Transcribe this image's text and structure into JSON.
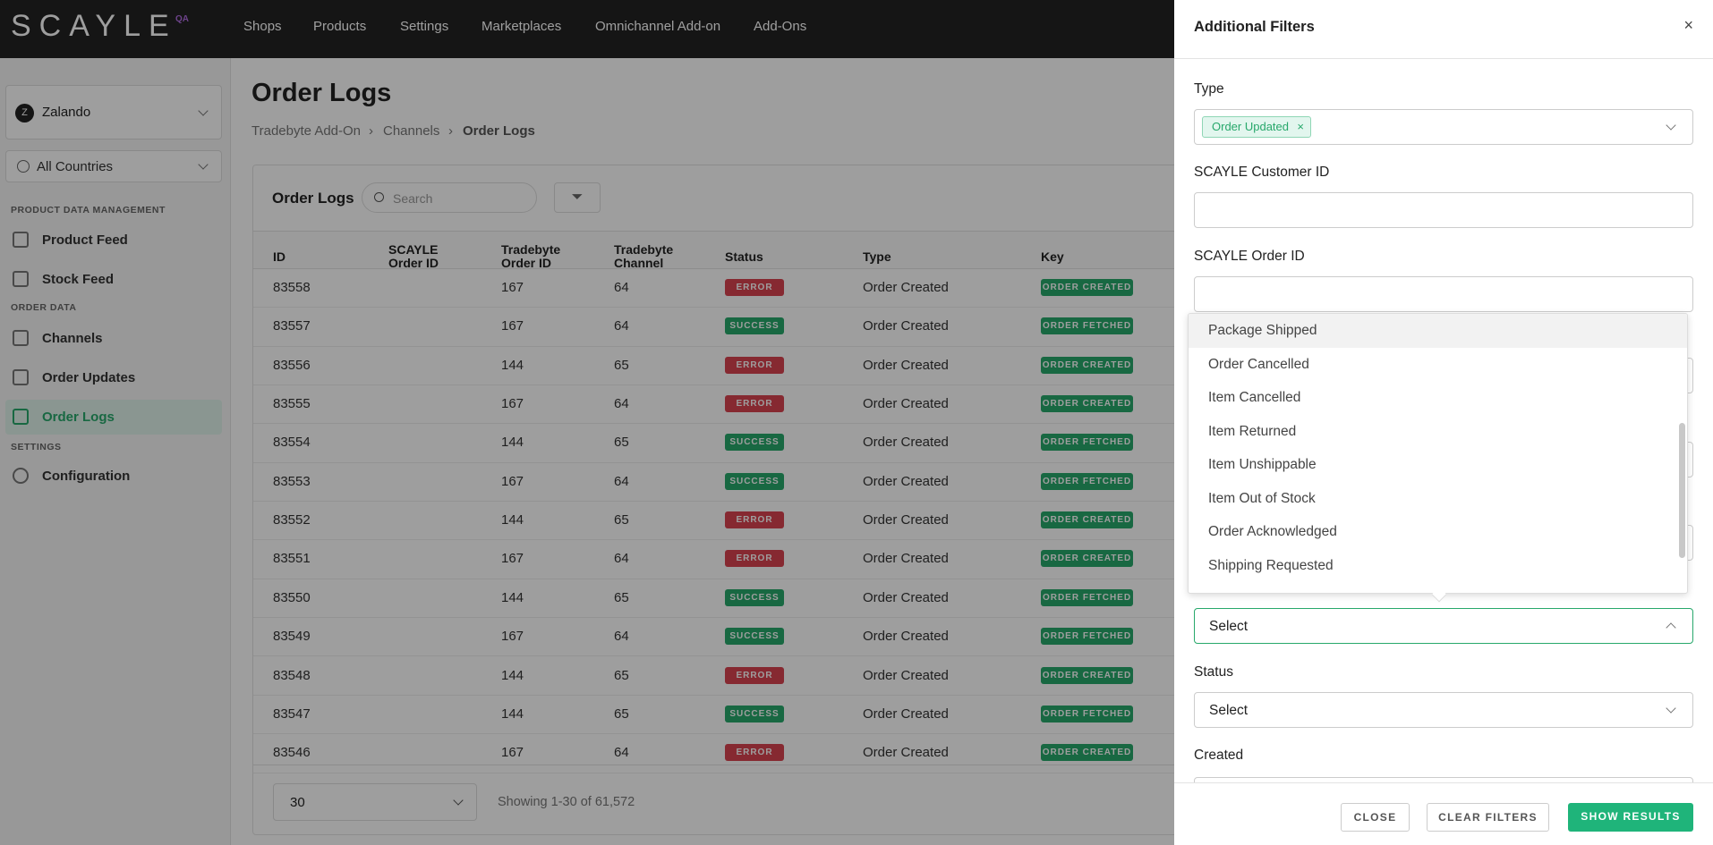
{
  "header": {
    "logo": "SCAYLE",
    "env": "QA",
    "nav": [
      "Shops",
      "Products",
      "Settings",
      "Marketplaces",
      "Omnichannel Add-on",
      "Add-Ons"
    ]
  },
  "sidebar": {
    "shop_initial": "Z",
    "shop": "Zalando",
    "country": "All Countries",
    "sections": [
      {
        "title": "PRODUCT DATA MANAGEMENT",
        "items": [
          "Product Feed",
          "Stock Feed"
        ]
      },
      {
        "title": "ORDER DATA",
        "items": [
          "Channels",
          "Order Updates",
          "Order Logs"
        ]
      },
      {
        "title": "SETTINGS",
        "items": [
          "Configuration"
        ]
      }
    ]
  },
  "page": {
    "title": "Order Logs",
    "breadcrumb": [
      "Tradebyte Add-On",
      "Channels",
      "Order Logs"
    ]
  },
  "table": {
    "title": "Order Logs",
    "search_placeholder": "Search",
    "columns": [
      "ID",
      "SCAYLE Order ID",
      "Tradebyte Order ID",
      "Tradebyte Channel",
      "Status",
      "Type",
      "Key"
    ],
    "rows": [
      {
        "id": "83558",
        "tradebyte_order_id": "167",
        "channel": "64",
        "status": "ERROR",
        "type": "Order Created",
        "key": "ORDER CREATED"
      },
      {
        "id": "83557",
        "tradebyte_order_id": "167",
        "channel": "64",
        "status": "SUCCESS",
        "type": "Order Created",
        "key": "ORDER FETCHED"
      },
      {
        "id": "83556",
        "tradebyte_order_id": "144",
        "channel": "65",
        "status": "ERROR",
        "type": "Order Created",
        "key": "ORDER CREATED"
      },
      {
        "id": "83555",
        "tradebyte_order_id": "167",
        "channel": "64",
        "status": "ERROR",
        "type": "Order Created",
        "key": "ORDER CREATED"
      },
      {
        "id": "83554",
        "tradebyte_order_id": "144",
        "channel": "65",
        "status": "SUCCESS",
        "type": "Order Created",
        "key": "ORDER FETCHED"
      },
      {
        "id": "83553",
        "tradebyte_order_id": "167",
        "channel": "64",
        "status": "SUCCESS",
        "type": "Order Created",
        "key": "ORDER FETCHED"
      },
      {
        "id": "83552",
        "tradebyte_order_id": "144",
        "channel": "65",
        "status": "ERROR",
        "type": "Order Created",
        "key": "ORDER CREATED"
      },
      {
        "id": "83551",
        "tradebyte_order_id": "167",
        "channel": "64",
        "status": "ERROR",
        "type": "Order Created",
        "key": "ORDER CREATED"
      },
      {
        "id": "83550",
        "tradebyte_order_id": "144",
        "channel": "65",
        "status": "SUCCESS",
        "type": "Order Created",
        "key": "ORDER FETCHED"
      },
      {
        "id": "83549",
        "tradebyte_order_id": "167",
        "channel": "64",
        "status": "SUCCESS",
        "type": "Order Created",
        "key": "ORDER FETCHED"
      },
      {
        "id": "83548",
        "tradebyte_order_id": "144",
        "channel": "65",
        "status": "ERROR",
        "type": "Order Created",
        "key": "ORDER CREATED"
      },
      {
        "id": "83547",
        "tradebyte_order_id": "144",
        "channel": "65",
        "status": "SUCCESS",
        "type": "Order Created",
        "key": "ORDER FETCHED"
      },
      {
        "id": "83546",
        "tradebyte_order_id": "167",
        "channel": "64",
        "status": "ERROR",
        "type": "Order Created",
        "key": "ORDER CREATED"
      }
    ]
  },
  "pagination": {
    "per_page": "30",
    "summary": "Showing 1-30 of 61,572"
  },
  "filters": {
    "title": "Additional Filters",
    "fields": [
      {
        "label": "Type",
        "chip": "Order Updated"
      },
      {
        "label": "SCAYLE Customer ID"
      },
      {
        "label": "SCAYLE Order ID"
      },
      {
        "placeholder": "Select"
      },
      {
        "label": "Status",
        "placeholder": "Select"
      },
      {
        "label": "Created"
      }
    ],
    "options": [
      "Package Shipped",
      "Order Cancelled",
      "Item Cancelled",
      "Item Returned",
      "Item Unshippable",
      "Item Out of Stock",
      "Order Acknowledged",
      "Shipping Requested"
    ],
    "buttons": [
      "CLOSE",
      "CLEAR FILTERS",
      "SHOW RESULTS"
    ]
  }
}
